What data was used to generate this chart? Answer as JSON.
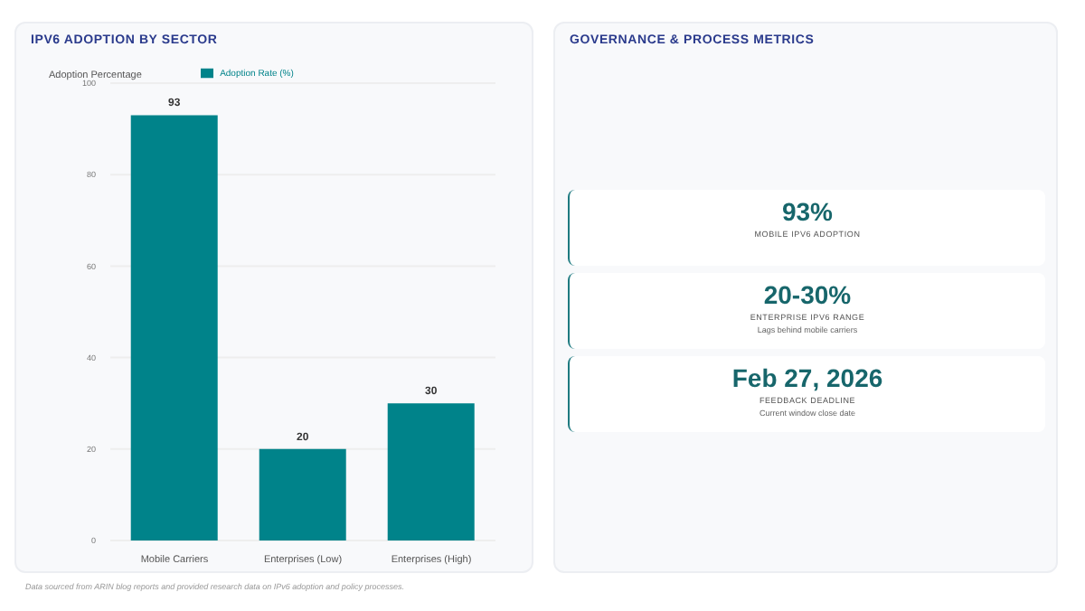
{
  "chart_data": [
    {
      "type": "bar",
      "title": "IPV6 ADOPTION BY SECTOR",
      "ylabel": "Adoption Percentage",
      "categories": [
        "Mobile Carriers",
        "Enterprises (Low)",
        "Enterprises (High)"
      ],
      "series": [
        {
          "name": "Adoption Rate (%)",
          "color": "#00838a",
          "values": [
            93,
            20,
            30
          ]
        }
      ],
      "ylim": [
        0,
        100
      ],
      "yticks": [
        0,
        20,
        40,
        60,
        80,
        100
      ],
      "grid": "y",
      "legend": "top",
      "data_labels": true,
      "annotations": [
        "Data sourced from ARIN blog reports and provided research data on IPv6 adoption and policy processes."
      ]
    },
    {
      "type": "other",
      "title": "GOVERNANCE & PROCESS METRICS",
      "annotations": [
        "93%",
        "MOBILE IPV6 ADOPTION",
        "20-30%",
        "ENTERPRISE IPV6 RANGE",
        "Lags behind mobile carriers",
        "Feb 27, 2026",
        "FEEDBACK DEADLINE",
        "Current window close date"
      ]
    }
  ]
}
